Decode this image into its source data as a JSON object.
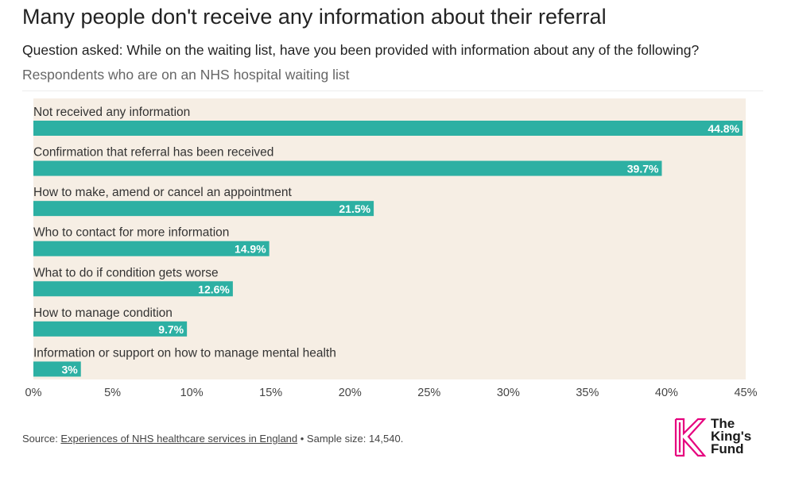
{
  "title": "Many people don't receive any information about their referral",
  "subtitle": "Question asked: While on the waiting list, have you been provided with information about any of the following?",
  "subtitle2": "Respondents who are on an NHS hospital waiting list",
  "chart_data": {
    "type": "bar",
    "orientation": "horizontal",
    "categories": [
      "Not received any information",
      "Confirmation that referral has been received",
      "How to make, amend or cancel an appointment",
      "Who to contact for more information",
      "What to do if condition gets worse",
      "How to manage condition",
      "Information or support on how to manage mental health"
    ],
    "values": [
      44.8,
      39.7,
      21.5,
      14.9,
      12.6,
      9.7,
      3
    ],
    "data_labels": [
      "44.8%",
      "39.7%",
      "21.5%",
      "14.9%",
      "12.6%",
      "9.7%",
      "3%"
    ],
    "xlim": [
      0,
      45
    ],
    "x_ticks": [
      0,
      5,
      10,
      15,
      20,
      25,
      30,
      35,
      40,
      45
    ],
    "x_tick_labels": [
      "0%",
      "5%",
      "10%",
      "15%",
      "20%",
      "25%",
      "30%",
      "35%",
      "40%",
      "45%"
    ],
    "bar_color": "#2db0a3",
    "plot_background": "#f6eee4",
    "grid": false,
    "legend": "none"
  },
  "footer": {
    "source_prefix": "Source: ",
    "source_link": "Experiences of NHS healthcare services in England",
    "source_suffix": " • Sample size: 14,540."
  },
  "logo": {
    "line1": "The",
    "line2": "King's",
    "line3": "Fund",
    "color": "#e6007e"
  }
}
